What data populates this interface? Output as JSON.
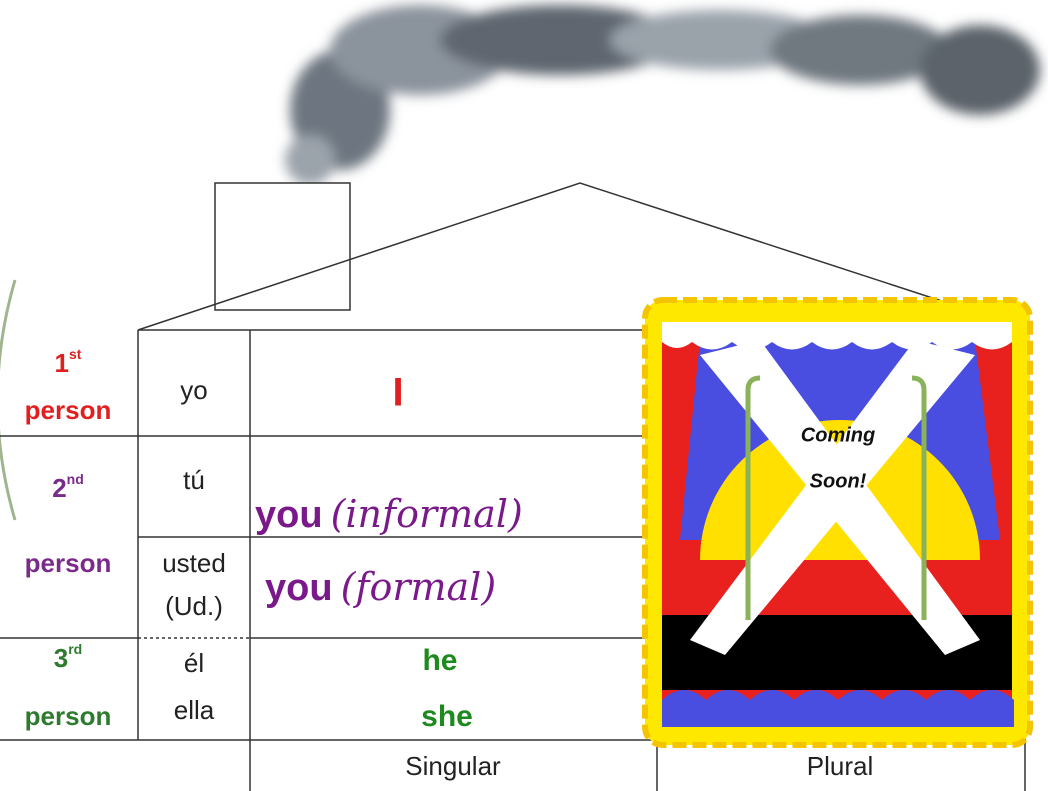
{
  "persons": [
    {
      "number": "1",
      "suffix": "st",
      "word": "person"
    },
    {
      "number": "2",
      "suffix": "nd",
      "word": "person"
    },
    {
      "number": "3",
      "suffix": "rd",
      "word": "person"
    }
  ],
  "pronouns": {
    "yo": "yo",
    "tu": "tú",
    "usted": "usted",
    "ud": "(Ud.)",
    "el": "él",
    "ella": "ella"
  },
  "translations": {
    "i": "I",
    "you_informal": "you",
    "informal": "(informal)",
    "you_formal": "you",
    "formal": "(formal)",
    "he": "he",
    "she": "she"
  },
  "columns": [
    "Singular",
    "Plural"
  ],
  "poster": {
    "line1": "Coming",
    "line2": "Soon!"
  }
}
